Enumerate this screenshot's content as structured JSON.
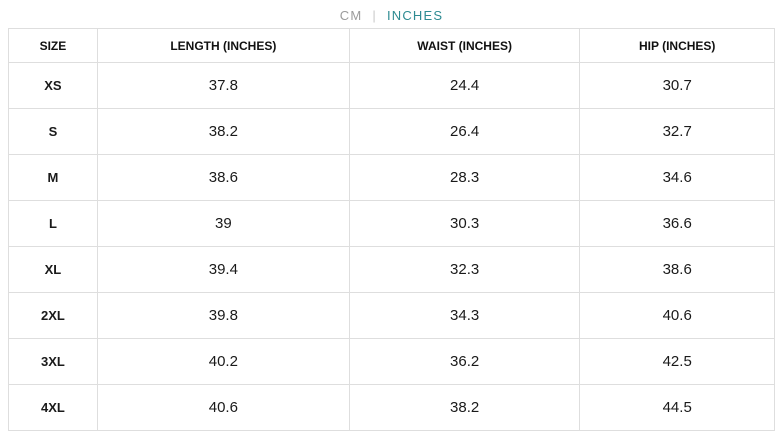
{
  "unit_toggle": {
    "cm_label": "CM",
    "separator": "|",
    "inches_label": "INCHES",
    "active_unit": "INCHES",
    "active_color": "#2e8b92",
    "inactive_color": "#9b9b9b"
  },
  "table": {
    "headers": {
      "size": "SIZE",
      "length": "LENGTH (INCHES)",
      "waist": "WAIST (INCHES)",
      "hip": "HIP (INCHES)"
    },
    "rows": [
      {
        "size": "XS",
        "length": "37.8",
        "waist": "24.4",
        "hip": "30.7"
      },
      {
        "size": "S",
        "length": "38.2",
        "waist": "26.4",
        "hip": "32.7"
      },
      {
        "size": "M",
        "length": "38.6",
        "waist": "28.3",
        "hip": "34.6"
      },
      {
        "size": "L",
        "length": "39",
        "waist": "30.3",
        "hip": "36.6"
      },
      {
        "size": "XL",
        "length": "39.4",
        "waist": "32.3",
        "hip": "38.6"
      },
      {
        "size": "2XL",
        "length": "39.8",
        "waist": "34.3",
        "hip": "40.6"
      },
      {
        "size": "3XL",
        "length": "40.2",
        "waist": "36.2",
        "hip": "42.5"
      },
      {
        "size": "4XL",
        "length": "40.6",
        "waist": "38.2",
        "hip": "44.5"
      }
    ]
  }
}
